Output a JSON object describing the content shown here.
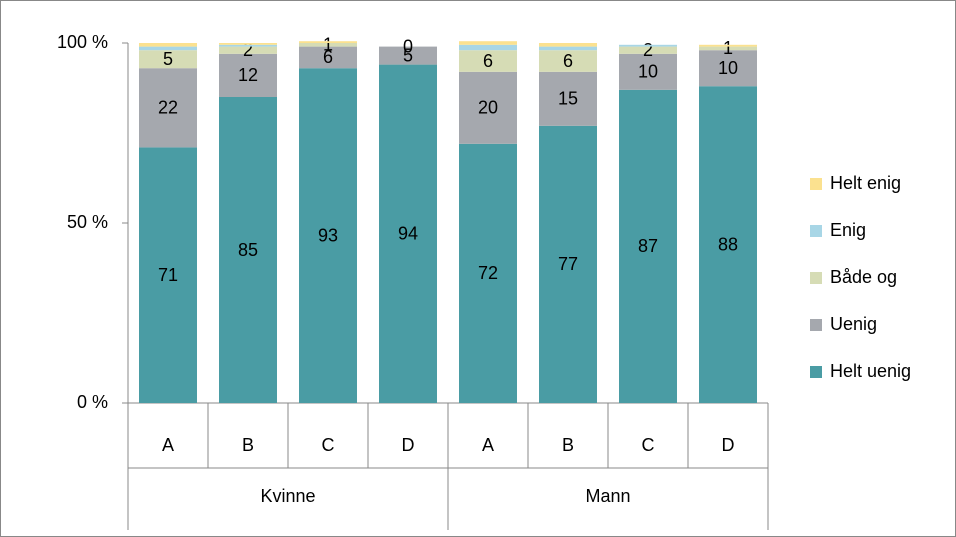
{
  "chart_data": {
    "type": "stacked_bar",
    "categories": [
      "A",
      "B",
      "C",
      "D",
      "A",
      "B",
      "C",
      "D"
    ],
    "groups": [
      {
        "name": "Kvinne",
        "size": 4
      },
      {
        "name": "Mann",
        "size": 4
      }
    ],
    "series": [
      {
        "name": "Helt uenig",
        "color": "#4a9ca4",
        "labels": true,
        "values": [
          71,
          85,
          93,
          94,
          72,
          77,
          87,
          88
        ]
      },
      {
        "name": "Uenig",
        "color": "#a5a8ae",
        "labels": true,
        "values": [
          22,
          12,
          6,
          5,
          20,
          15,
          10,
          10
        ]
      },
      {
        "name": "Både og",
        "color": "#d6dcb5",
        "labels": true,
        "values": [
          5,
          2,
          1,
          0,
          6,
          6,
          2,
          1
        ]
      },
      {
        "name": "Enig",
        "color": "#a8d6e6",
        "labels": false,
        "values": [
          1,
          0.5,
          0,
          0,
          1.5,
          1,
          0.5,
          0
        ]
      },
      {
        "name": "Helt enig",
        "color": "#fbe18f",
        "labels": false,
        "values": [
          1,
          0.5,
          0.5,
          0,
          1,
          1,
          0,
          0.5
        ]
      }
    ],
    "ylim": [
      0,
      100
    ],
    "yticks": [
      {
        "value": 0,
        "label": "0 %"
      },
      {
        "value": 50,
        "label": "50 %"
      },
      {
        "value": 100,
        "label": "100 %"
      }
    ],
    "legend": "right"
  }
}
